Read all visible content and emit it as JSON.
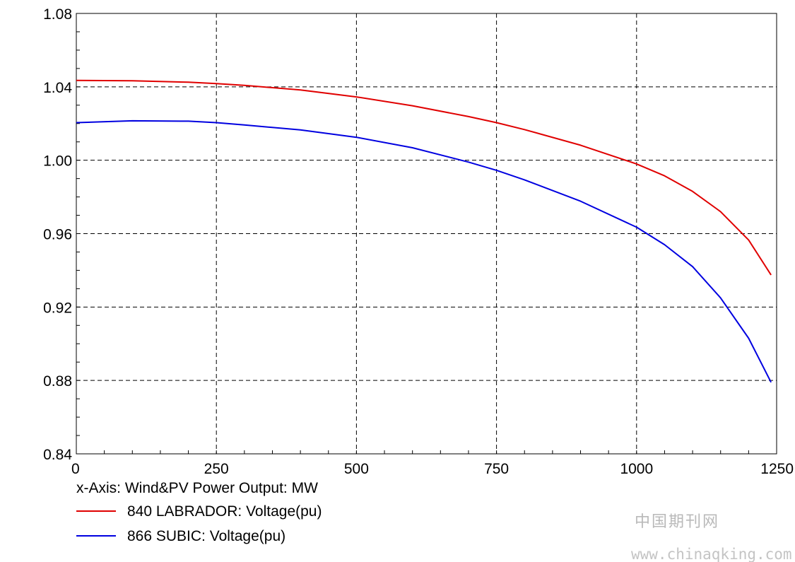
{
  "chart_data": {
    "type": "line",
    "xlabel": "x-Axis: Wind&PV Power Output: MW",
    "xlim": [
      0,
      1250
    ],
    "ylim": [
      0.84,
      1.08
    ],
    "x_ticks": [
      "0",
      "250",
      "500",
      "750",
      "1000",
      "1250"
    ],
    "y_ticks": [
      "0.84",
      "0.88",
      "0.92",
      "0.96",
      "1.00",
      "1.04",
      "1.08"
    ],
    "grid": true,
    "legend_position": "bottom-left",
    "series": [
      {
        "name": "840 LABRADOR: Voltage(pu)",
        "color": "#e00000",
        "x": [
          0,
          100,
          200,
          250,
          300,
          400,
          500,
          600,
          700,
          750,
          800,
          900,
          1000,
          1050,
          1100,
          1150,
          1200,
          1240
        ],
        "y": [
          1.0435,
          1.0433,
          1.0425,
          1.0418,
          1.0408,
          1.0383,
          1.0345,
          1.0297,
          1.0238,
          1.0205,
          1.0167,
          1.0082,
          0.998,
          0.9915,
          0.983,
          0.972,
          0.9565,
          0.9375
        ]
      },
      {
        "name": "866 SUBIC: Voltage(pu)",
        "color": "#0000e0",
        "x": [
          0,
          100,
          200,
          250,
          300,
          400,
          500,
          600,
          700,
          750,
          800,
          900,
          1000,
          1050,
          1100,
          1150,
          1200,
          1240
        ],
        "y": [
          1.0205,
          1.0215,
          1.0213,
          1.0205,
          1.0192,
          1.0165,
          1.0125,
          1.0068,
          0.999,
          0.9945,
          0.9893,
          0.9777,
          0.9635,
          0.954,
          0.942,
          0.925,
          0.903,
          0.879
        ]
      }
    ]
  },
  "watermark": {
    "cn": "中国期刊网",
    "url": "www.chinaqking.com"
  }
}
